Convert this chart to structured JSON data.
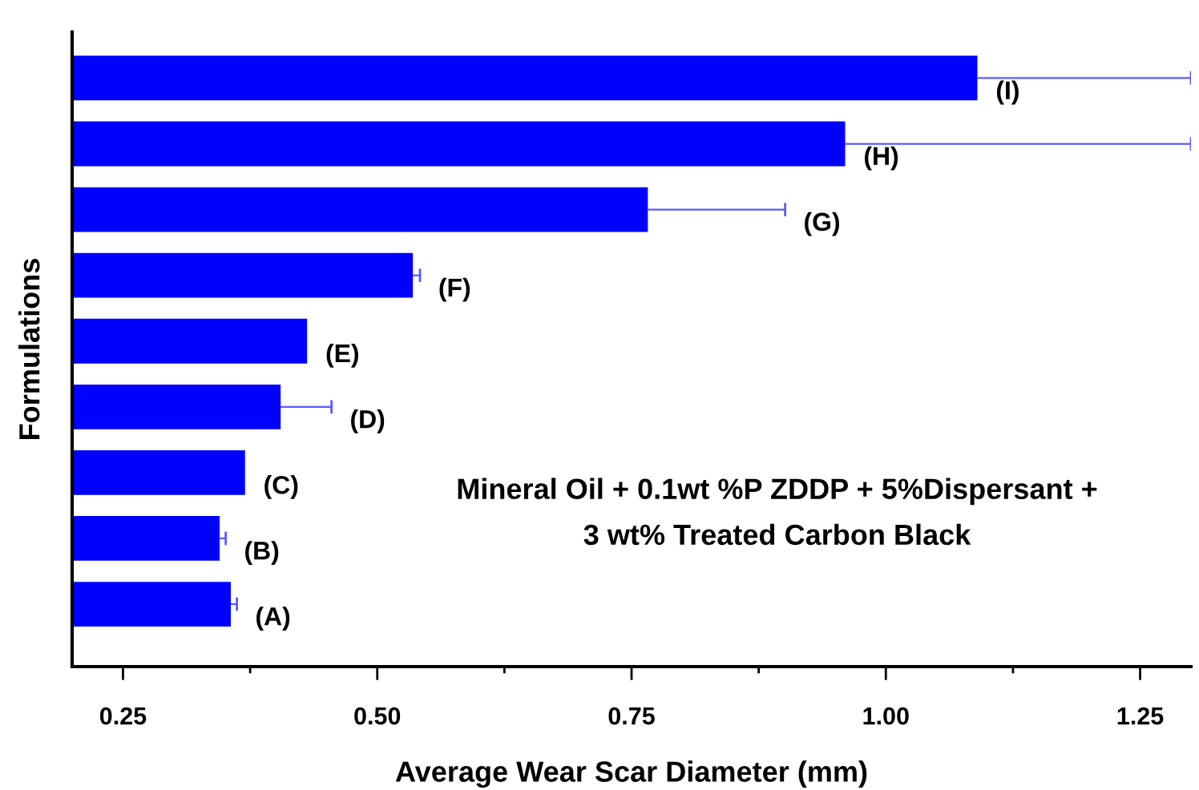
{
  "chart_data": {
    "type": "bar",
    "orientation": "horizontal",
    "xlabel": "Average Wear Scar Diameter (mm)",
    "ylabel": "Formulations",
    "categories": [
      "(I)",
      "(H)",
      "(G)",
      "(F)",
      "(E)",
      "(D)",
      "(C)",
      "(B)",
      "(A)"
    ],
    "values": [
      1.09,
      0.96,
      0.766,
      0.535,
      0.431,
      0.405,
      0.37,
      0.345,
      0.356
    ],
    "errors": [
      0.21,
      0.34,
      0.135,
      0.007,
      null,
      0.05,
      null,
      0.006,
      0.006
    ],
    "color": "#0000ff",
    "xlim": [
      0.2,
      1.3
    ],
    "xticks": [
      {
        "value": 0.25,
        "label": "0.25"
      },
      {
        "value": 0.5,
        "label": "0.50"
      },
      {
        "value": 0.75,
        "label": "0.75"
      },
      {
        "value": 1.0,
        "label": "1.00"
      },
      {
        "value": 1.25,
        "label": "1.25"
      }
    ],
    "tick_labels": "x",
    "grid": false,
    "legend": false,
    "annotations": [
      "Mineral Oil + 0.1wt %P ZDDP + 5%Dispersant +\n3 wt% Treated Carbon Black"
    ]
  }
}
